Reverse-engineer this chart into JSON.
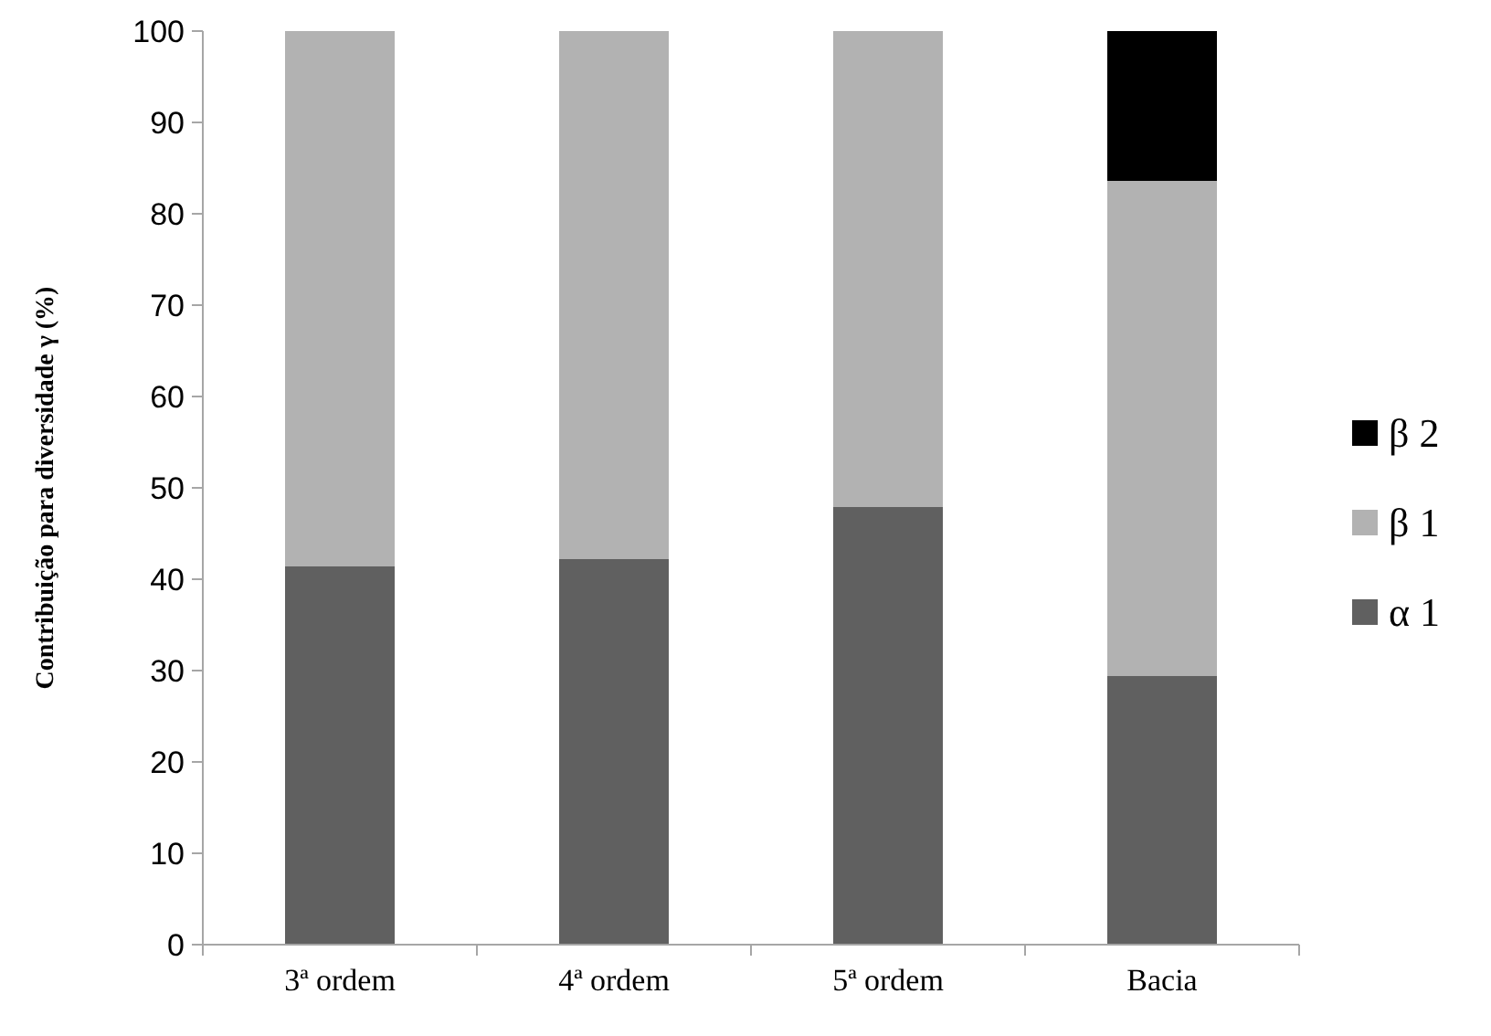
{
  "chart_data": {
    "type": "bar",
    "stacked": true,
    "ylabel": "Contribuição para diversidade γ (%)",
    "categories": [
      "3ª ordem",
      "4ª ordem",
      "5ª ordem",
      "Bacia"
    ],
    "series": [
      {
        "name": "α 1",
        "color": "#606060",
        "values": [
          41.4,
          42.2,
          47.9,
          29.4
        ]
      },
      {
        "name": "β 1",
        "color": "#b2b2b2",
        "values": [
          58.6,
          57.8,
          52.1,
          54.2
        ]
      },
      {
        "name": "β 2",
        "color": "#000000",
        "values": [
          null,
          null,
          null,
          16.4
        ]
      }
    ],
    "ylim": [
      0,
      100
    ],
    "yticks": [
      0,
      10,
      20,
      30,
      40,
      50,
      60,
      70,
      80,
      90,
      100
    ],
    "grid": false,
    "legend": "right"
  }
}
